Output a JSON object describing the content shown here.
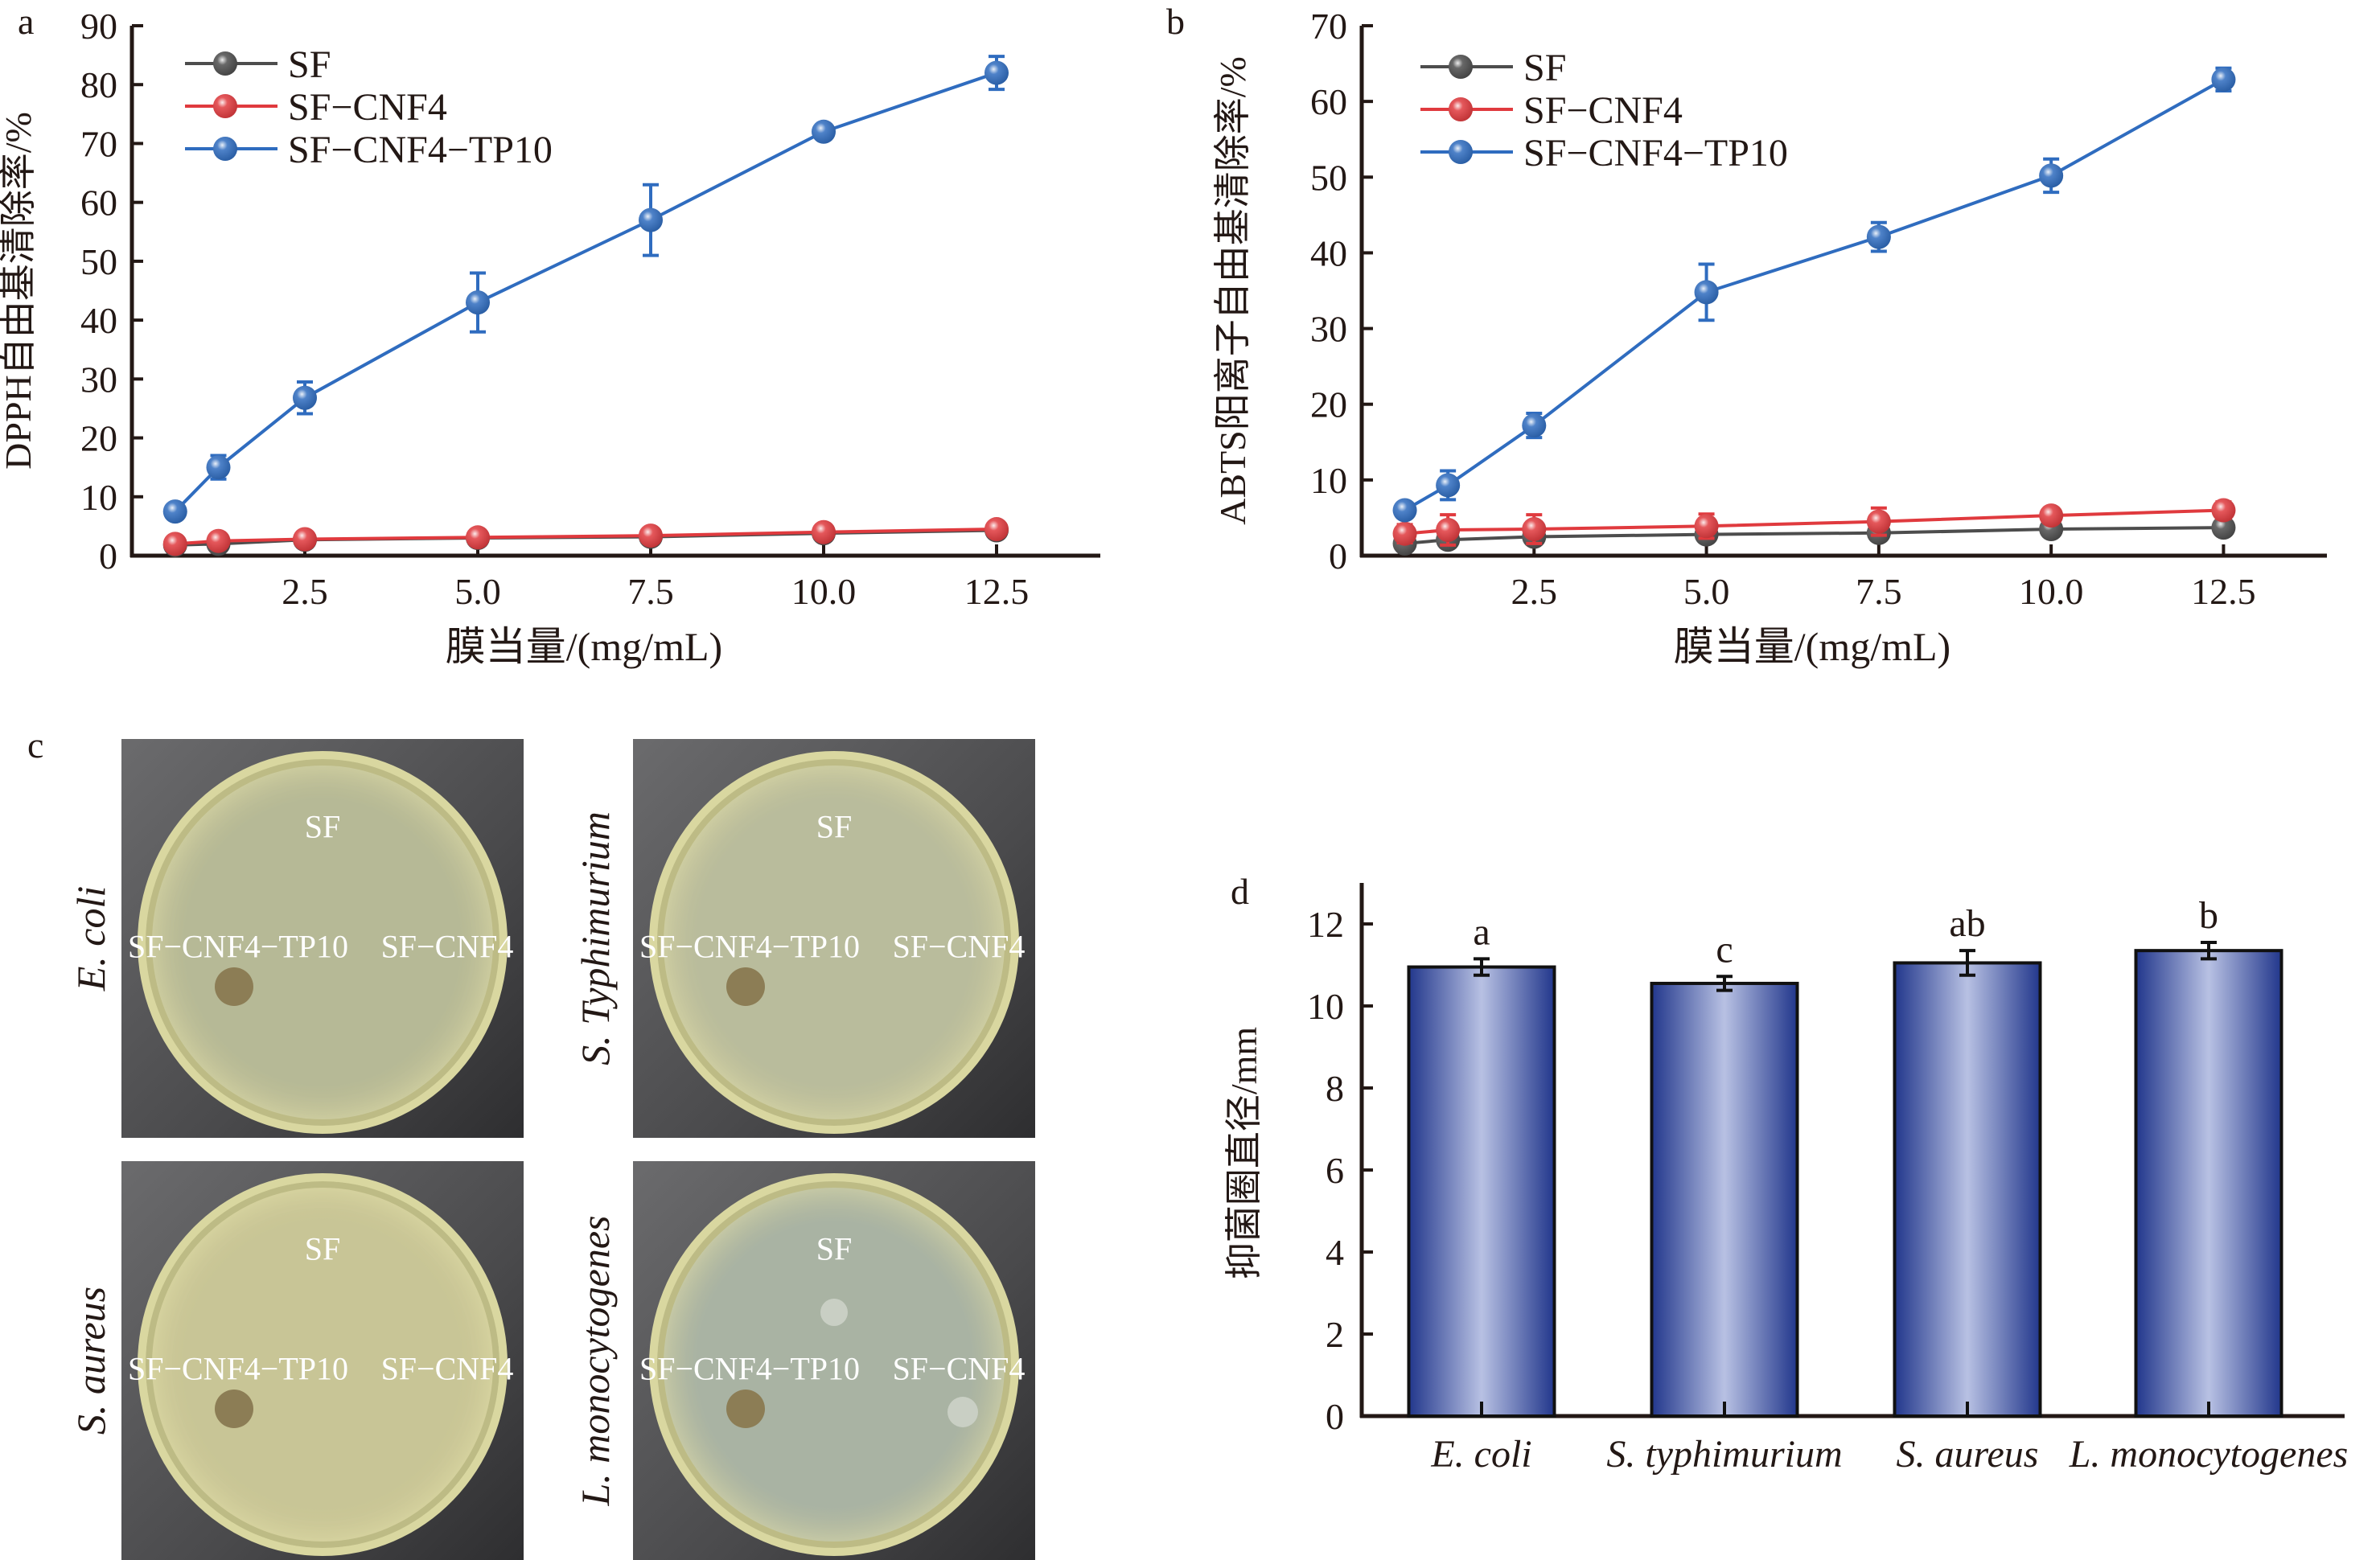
{
  "chart_data": [
    {
      "panel": "a",
      "type": "line",
      "xlabel": "膜当量/(mg/mL)",
      "ylabel": "DPPH自由基清除率/%",
      "xlim": [
        0,
        14
      ],
      "ylim": [
        0,
        90
      ],
      "xticks": [
        "2.5",
        "5.0",
        "7.5",
        "10.0",
        "12.5"
      ],
      "xtick_values": [
        2.5,
        5,
        7.5,
        10,
        12.5
      ],
      "yticks": [
        "0",
        "10",
        "20",
        "30",
        "40",
        "50",
        "60",
        "70",
        "80",
        "90"
      ],
      "legend_position": "top-left",
      "x": [
        0.625,
        1.25,
        2.5,
        5,
        7.5,
        10,
        12.5
      ],
      "series": [
        {
          "name": "SF",
          "color": "#4d4d4d",
          "values": [
            1.8,
            2.0,
            2.7,
            3.0,
            3.2,
            3.8,
            4.3
          ],
          "errors": [
            0.3,
            0.3,
            0.3,
            0.3,
            0.3,
            0.3,
            0.3
          ]
        },
        {
          "name": "SF−CNF4",
          "color": "#e03a3e",
          "values": [
            2.0,
            2.5,
            2.8,
            3.1,
            3.4,
            4.0,
            4.5
          ],
          "errors": [
            0.4,
            0.4,
            0.4,
            0.4,
            0.4,
            0.4,
            0.4
          ]
        },
        {
          "name": "SF−CNF4−TP10",
          "color": "#2f6cbf",
          "values": [
            7.5,
            15.0,
            26.8,
            43.0,
            57.0,
            72.0,
            82.0
          ],
          "errors": [
            0.8,
            2.0,
            2.7,
            5.0,
            6.0,
            0.6,
            2.8
          ]
        }
      ]
    },
    {
      "panel": "b",
      "type": "line",
      "xlabel": "膜当量/(mg/mL)",
      "ylabel": "ABTS阳离子自由基清除率/%",
      "xlim": [
        0,
        14
      ],
      "ylim": [
        0,
        70
      ],
      "xticks": [
        "2.5",
        "5.0",
        "7.5",
        "10.0",
        "12.5"
      ],
      "xtick_values": [
        2.5,
        5,
        7.5,
        10,
        12.5
      ],
      "yticks": [
        "0",
        "10",
        "20",
        "30",
        "40",
        "50",
        "60",
        "70"
      ],
      "legend_position": "top-left",
      "x": [
        0.625,
        1.25,
        2.5,
        5,
        7.5,
        10,
        12.5
      ],
      "series": [
        {
          "name": "SF",
          "color": "#4d4d4d",
          "values": [
            1.6,
            2.1,
            2.5,
            2.8,
            3.0,
            3.5,
            3.7
          ],
          "errors": [
            0.5,
            0.5,
            0.5,
            0.5,
            0.5,
            0.4,
            0.4
          ]
        },
        {
          "name": "SF−CNF4",
          "color": "#e03a3e",
          "values": [
            2.9,
            3.4,
            3.5,
            3.9,
            4.5,
            5.3,
            6.0
          ],
          "errors": [
            1.2,
            2.0,
            1.9,
            1.6,
            1.8,
            1.0,
            1.1
          ]
        },
        {
          "name": "SF−CNF4−TP10",
          "color": "#2f6cbf",
          "values": [
            6.0,
            9.3,
            17.2,
            34.8,
            42.1,
            50.2,
            62.9
          ],
          "errors": [
            0.5,
            1.9,
            1.6,
            3.7,
            1.9,
            2.2,
            1.5
          ]
        }
      ]
    },
    {
      "panel": "d",
      "type": "bar",
      "xlabel": "",
      "ylabel": "抑菌圈直径/mm",
      "ylim": [
        0,
        13
      ],
      "yticks": [
        "0",
        "2",
        "4",
        "6",
        "8",
        "10",
        "12"
      ],
      "categories": [
        "E. coli",
        "S. typhimurium",
        "S. aureus",
        "L. monocytogenes"
      ],
      "values": [
        10.95,
        10.55,
        11.05,
        11.35
      ],
      "errors": [
        0.2,
        0.17,
        0.3,
        0.2
      ],
      "annotations": [
        "a",
        "c",
        "ab",
        "b"
      ],
      "color": "#2a3d8f"
    }
  ],
  "panel_letters": {
    "a": "a",
    "b": "b",
    "c": "c",
    "d": "d"
  },
  "photos": [
    {
      "organism": "E. coli",
      "labels": {
        "top": "SF",
        "left": "SF−CNF4−TP10",
        "right": "SF−CNF4"
      },
      "agar": "#b6b996"
    },
    {
      "organism": "S. Typhimurium",
      "labels": {
        "top": "SF",
        "left": "SF−CNF4−TP10",
        "right": "SF−CNF4"
      },
      "agar": "#b9bc9c"
    },
    {
      "organism": "S. aureus",
      "labels": {
        "top": "SF",
        "left": "SF−CNF4−TP10",
        "right": "SF−CNF4"
      },
      "agar": "#c8c596"
    },
    {
      "organism": "L. monocytogenes",
      "labels": {
        "top": "SF",
        "left": "SF−CNF4−TP10",
        "right": "SF−CNF4"
      },
      "agar": "#a9b3a3"
    }
  ]
}
